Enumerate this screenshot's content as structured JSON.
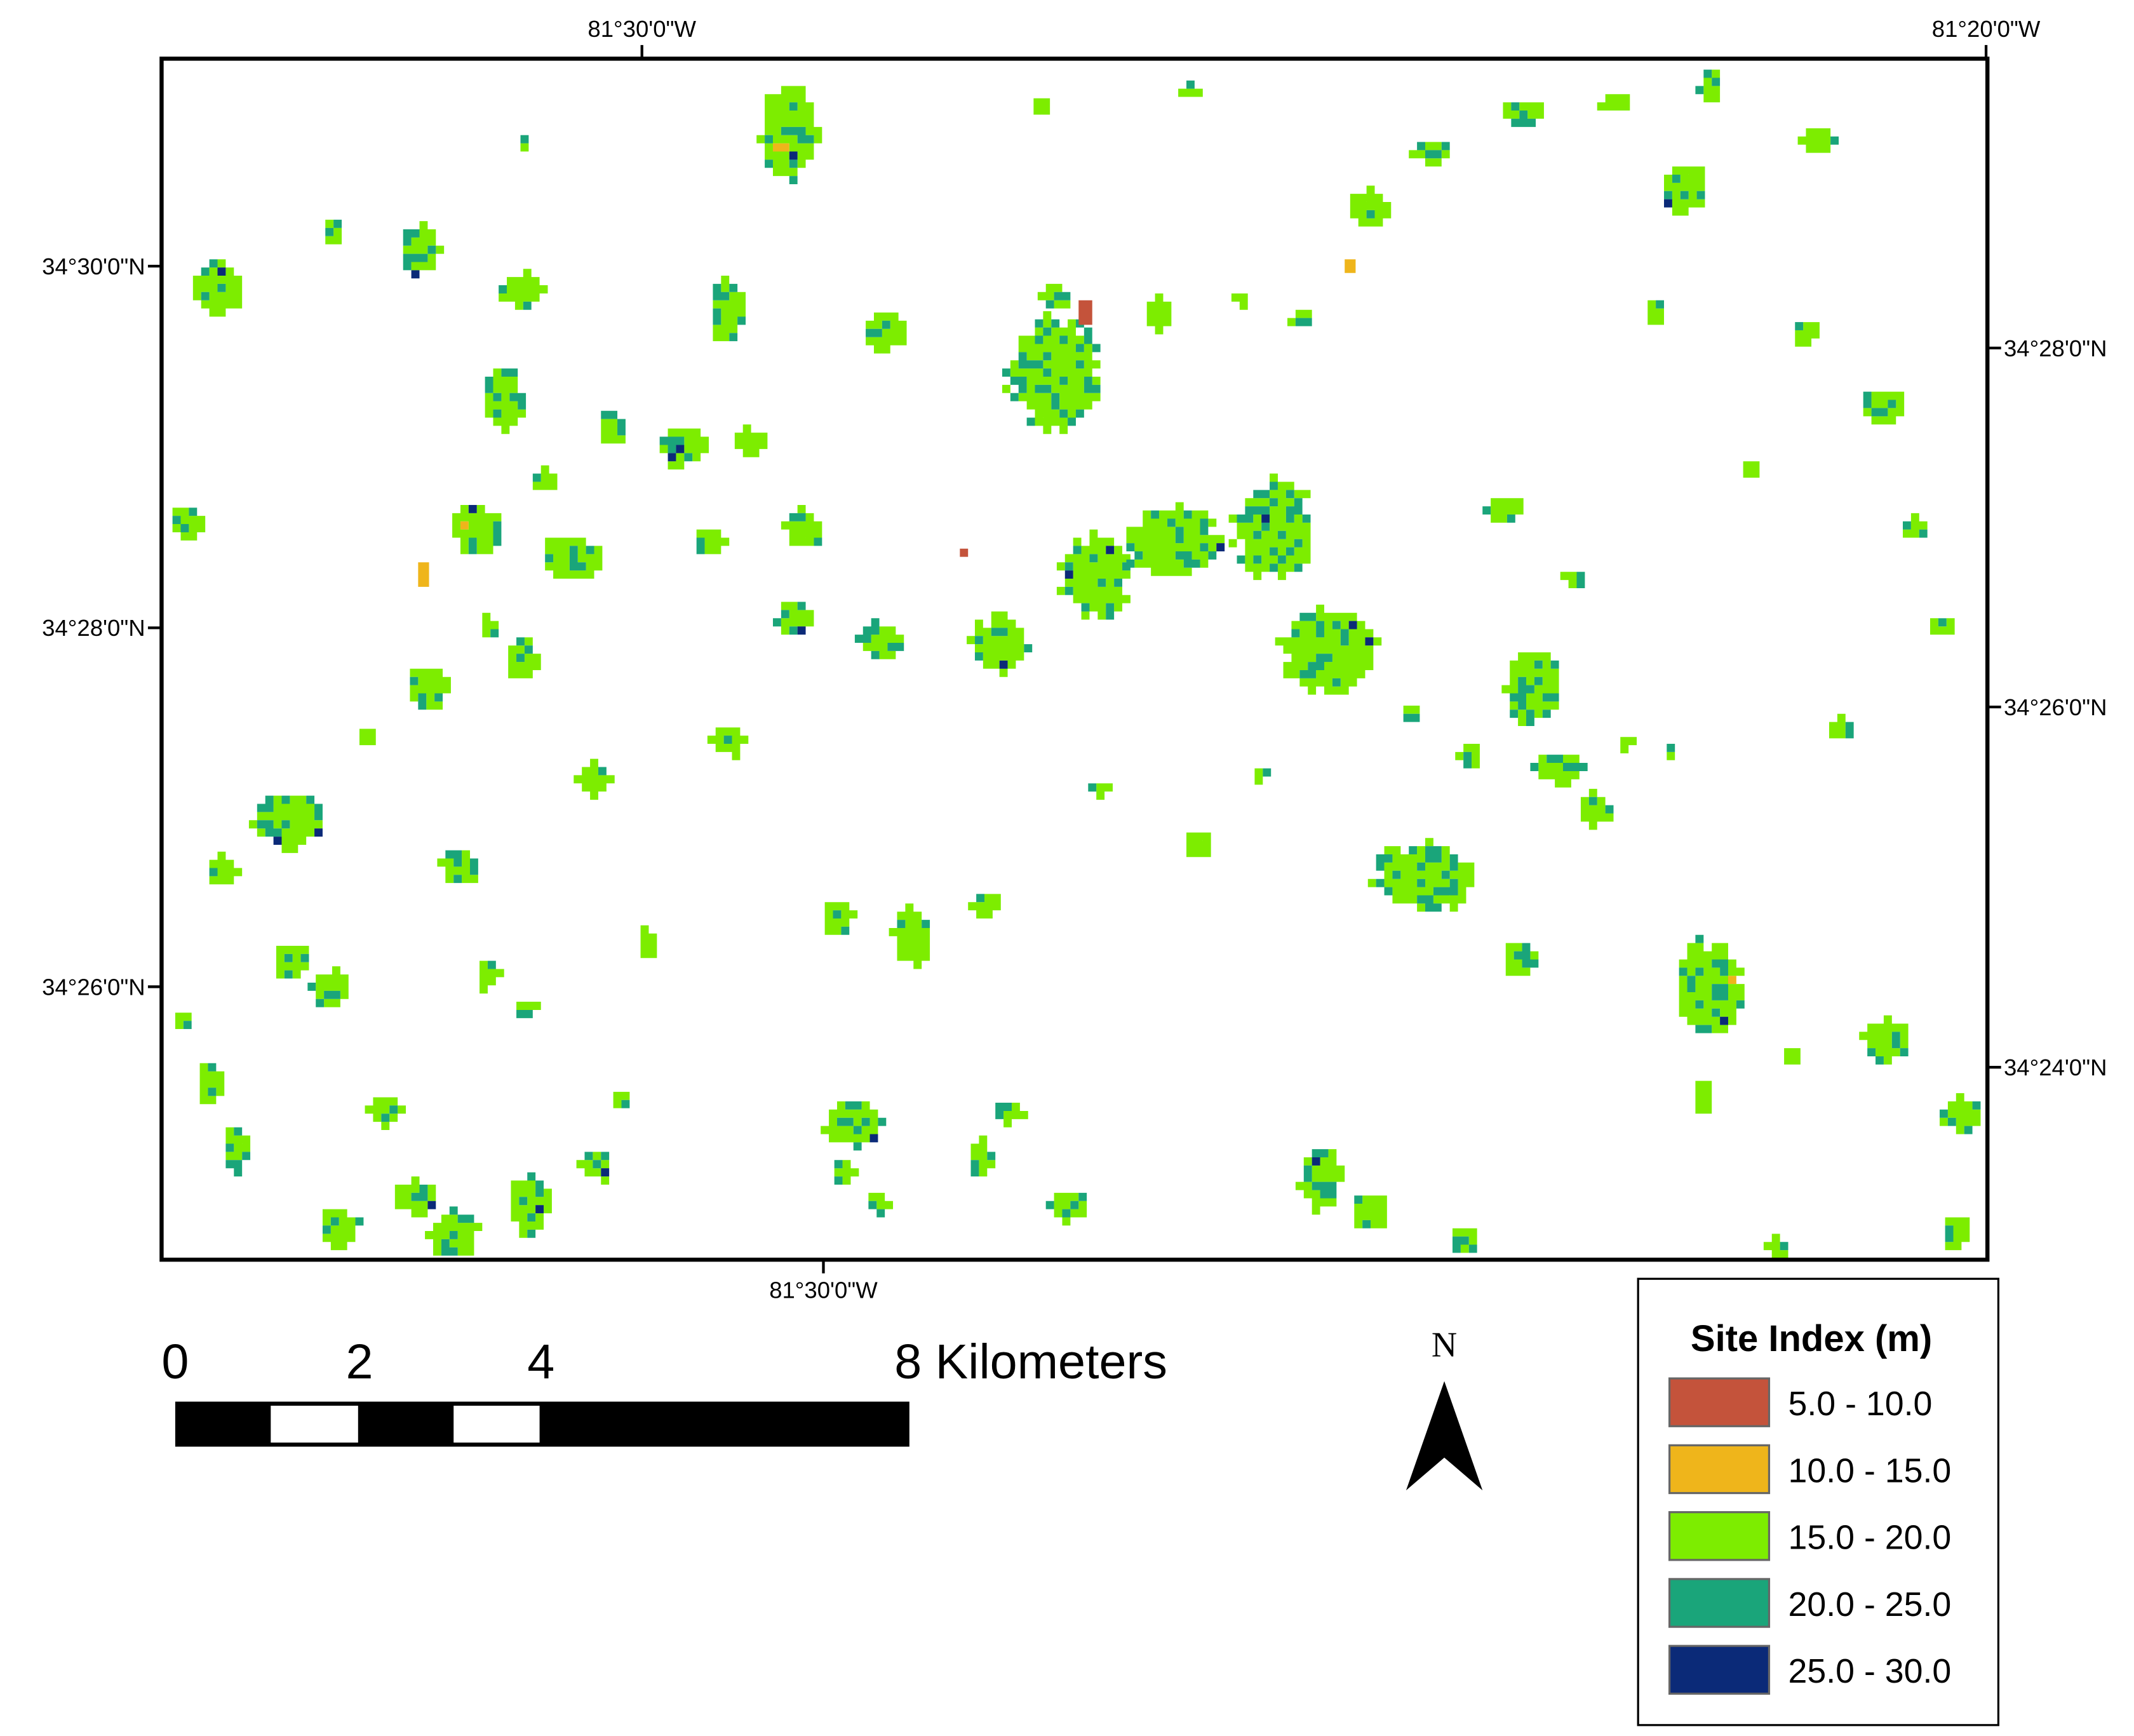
{
  "map": {
    "top_labels": [
      "81°30'0\"W",
      "81°20'0\"W"
    ],
    "bottom_labels": [
      "81°30'0\"W"
    ],
    "left_labels": [
      "34°30'0\"N",
      "34°28'0\"N",
      "34°26'0\"N"
    ],
    "right_labels": [
      "34°28'0\"N",
      "34°26'0\"N",
      "34°24'0\"N"
    ]
  },
  "scale_bar": {
    "labels": [
      "0",
      "2",
      "4",
      "8 Kilometers"
    ]
  },
  "north_arrow": {
    "label": "N"
  },
  "legend": {
    "title": "Site Index (m)",
    "items": [
      {
        "label": "5.0 - 10.0",
        "color": "#c4533b"
      },
      {
        "label": "10.0 - 15.0",
        "color": "#efb51b"
      },
      {
        "label": "15.0 - 20.0",
        "color": "#7ded00"
      },
      {
        "label": "20.0 - 25.0",
        "color": "#1aa57a"
      },
      {
        "label": "25.0 - 30.0",
        "color": "#0b2a78"
      }
    ]
  }
}
